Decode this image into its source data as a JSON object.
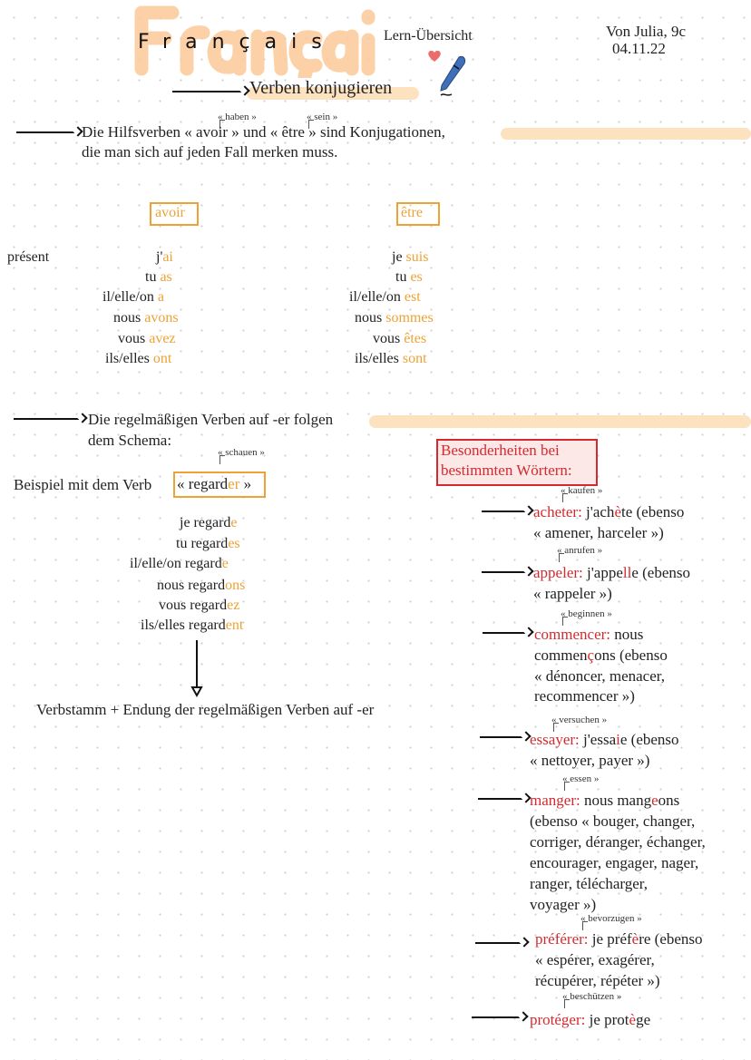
{
  "header": {
    "logo_text": "Français",
    "subtitle": "Lern-Übersicht",
    "author": "Von Julia, 9c",
    "date": "04.11.22"
  },
  "colors": {
    "orange": "#eea235",
    "red": "#d42a2f",
    "highlight": "#fde2bf"
  },
  "icons": [
    "heart-icon",
    "pen-icon",
    "arrow-right-icon",
    "arrow-down-icon"
  ],
  "texts": {
    "heading": [
      [
        "Verben konjugieren",
        ""
      ]
    ],
    "ann_haben": [
      [
        "« haben »",
        ""
      ]
    ],
    "ann_sein": [
      [
        "« sein »",
        ""
      ]
    ],
    "intro1": [
      [
        "Die Hilfsverben « avoir » und « être » sind Konjugationen,",
        ""
      ]
    ],
    "intro2": [
      [
        "die man sich auf jeden Fall merken muss.",
        ""
      ]
    ],
    "avoir_title": [
      [
        "avoir",
        "o"
      ]
    ],
    "etre_title": [
      [
        "être",
        "o"
      ]
    ],
    "present": [
      [
        "présent",
        ""
      ]
    ],
    "av1": [
      [
        "j'",
        ""
      ],
      [
        "ai",
        "o"
      ]
    ],
    "av2": [
      [
        "tu ",
        ""
      ],
      [
        "as",
        "o"
      ]
    ],
    "av3": [
      [
        "il/elle/on ",
        ""
      ],
      [
        "a",
        "o"
      ]
    ],
    "av4": [
      [
        "nous ",
        ""
      ],
      [
        "avons",
        "o"
      ]
    ],
    "av5": [
      [
        "vous ",
        ""
      ],
      [
        "avez",
        "o"
      ]
    ],
    "av6": [
      [
        "ils/elles ",
        ""
      ],
      [
        "ont",
        "o"
      ]
    ],
    "et1": [
      [
        "je ",
        ""
      ],
      [
        "suis",
        "o"
      ]
    ],
    "et2": [
      [
        "tu ",
        ""
      ],
      [
        "es",
        "o"
      ]
    ],
    "et3": [
      [
        "il/elle/on ",
        ""
      ],
      [
        "est",
        "o"
      ]
    ],
    "et4": [
      [
        "nous ",
        ""
      ],
      [
        "sommes",
        "o"
      ]
    ],
    "et5": [
      [
        "vous ",
        ""
      ],
      [
        "êtes",
        "o"
      ]
    ],
    "et6": [
      [
        "ils/elles ",
        ""
      ],
      [
        "sont",
        "o"
      ]
    ],
    "reg1": [
      [
        "Die regelmäßigen Verben auf -er folgen",
        ""
      ]
    ],
    "reg2": [
      [
        "dem Schema:",
        ""
      ]
    ],
    "ann_schauen": [
      [
        "« schauen »",
        ""
      ]
    ],
    "beispiel": [
      [
        "Beispiel mit dem Verb",
        ""
      ]
    ],
    "regarder": [
      [
        "« regard",
        ""
      ],
      [
        "er",
        "o"
      ],
      [
        " »",
        ""
      ]
    ],
    "rg1": [
      [
        "je regard",
        ""
      ],
      [
        "e",
        "o"
      ]
    ],
    "rg2": [
      [
        "tu regard",
        ""
      ],
      [
        "es",
        "o"
      ]
    ],
    "rg3": [
      [
        "il/elle/on regard",
        ""
      ],
      [
        "e",
        "o"
      ]
    ],
    "rg4": [
      [
        "nous regard",
        ""
      ],
      [
        "ons",
        "o"
      ]
    ],
    "rg5": [
      [
        "vous regard",
        ""
      ],
      [
        "ez",
        "o"
      ]
    ],
    "rg6": [
      [
        "ils/elles regard",
        ""
      ],
      [
        "ent",
        "o"
      ]
    ],
    "verbstamm": [
      [
        "Verbstamm + Endung der regelmäßigen Verben auf -er",
        ""
      ]
    ],
    "bes1": [
      [
        "Besonderheiten bei",
        "r"
      ]
    ],
    "bes2": [
      [
        "bestimmten Wörtern:",
        "r"
      ]
    ],
    "ann_kaufen": [
      [
        "« kaufen »",
        ""
      ]
    ],
    "ach1": [
      [
        "acheter:",
        "r"
      ],
      [
        " j'ach",
        ""
      ],
      [
        "è",
        "r"
      ],
      [
        "te (ebenso",
        ""
      ]
    ],
    "ach2": [
      [
        "« amener, harceler »)",
        ""
      ]
    ],
    "ann_anrufen": [
      [
        "« anrufen »",
        ""
      ]
    ],
    "app1": [
      [
        "appeler:",
        "r"
      ],
      [
        " j'appe",
        ""
      ],
      [
        "ll",
        "r"
      ],
      [
        "e (ebenso",
        ""
      ]
    ],
    "app2": [
      [
        "« rappeler »)",
        ""
      ]
    ],
    "ann_beginnen": [
      [
        "« beginnen »",
        ""
      ]
    ],
    "com1": [
      [
        "commencer:",
        "r"
      ],
      [
        " nous",
        ""
      ]
    ],
    "com2": [
      [
        "commen",
        ""
      ],
      [
        "ç",
        "r"
      ],
      [
        "ons (ebenso",
        ""
      ]
    ],
    "com3": [
      [
        "« dénoncer, menacer,",
        ""
      ]
    ],
    "com4": [
      [
        "recommencer »)",
        ""
      ]
    ],
    "ann_versuchen": [
      [
        "« versuchen »",
        ""
      ]
    ],
    "ess1": [
      [
        "essayer:",
        "r"
      ],
      [
        " j'essa",
        ""
      ],
      [
        "i",
        "r"
      ],
      [
        "e (ebenso",
        ""
      ]
    ],
    "ess2": [
      [
        "« nettoyer, payer »)",
        ""
      ]
    ],
    "ann_essen": [
      [
        "« essen »",
        ""
      ]
    ],
    "man1": [
      [
        "manger:",
        "r"
      ],
      [
        " nous mang",
        ""
      ],
      [
        "e",
        "r"
      ],
      [
        "ons",
        ""
      ]
    ],
    "man2": [
      [
        "(ebenso « bouger, changer,",
        ""
      ]
    ],
    "man3": [
      [
        "corriger, déranger, échanger,",
        ""
      ]
    ],
    "man4": [
      [
        "encourager, engager, nager,",
        ""
      ]
    ],
    "man5": [
      [
        "ranger, télécharger,",
        ""
      ]
    ],
    "man6": [
      [
        "voyager »)",
        ""
      ]
    ],
    "ann_bevorzugen": [
      [
        "« bevorzugen »",
        ""
      ]
    ],
    "pre1": [
      [
        "préférer:",
        "r"
      ],
      [
        " je préf",
        ""
      ],
      [
        "è",
        "r"
      ],
      [
        "re (ebenso",
        ""
      ]
    ],
    "pre2": [
      [
        "« espérer, exagérer,",
        ""
      ]
    ],
    "pre3": [
      [
        "récupérer, répéter »)",
        ""
      ]
    ],
    "ann_beschuetzen": [
      [
        "« beschützen »",
        ""
      ]
    ],
    "pro1": [
      [
        "protéger:",
        "r"
      ],
      [
        " je prot",
        ""
      ],
      [
        "è",
        "r"
      ],
      [
        "ge",
        ""
      ]
    ]
  }
}
